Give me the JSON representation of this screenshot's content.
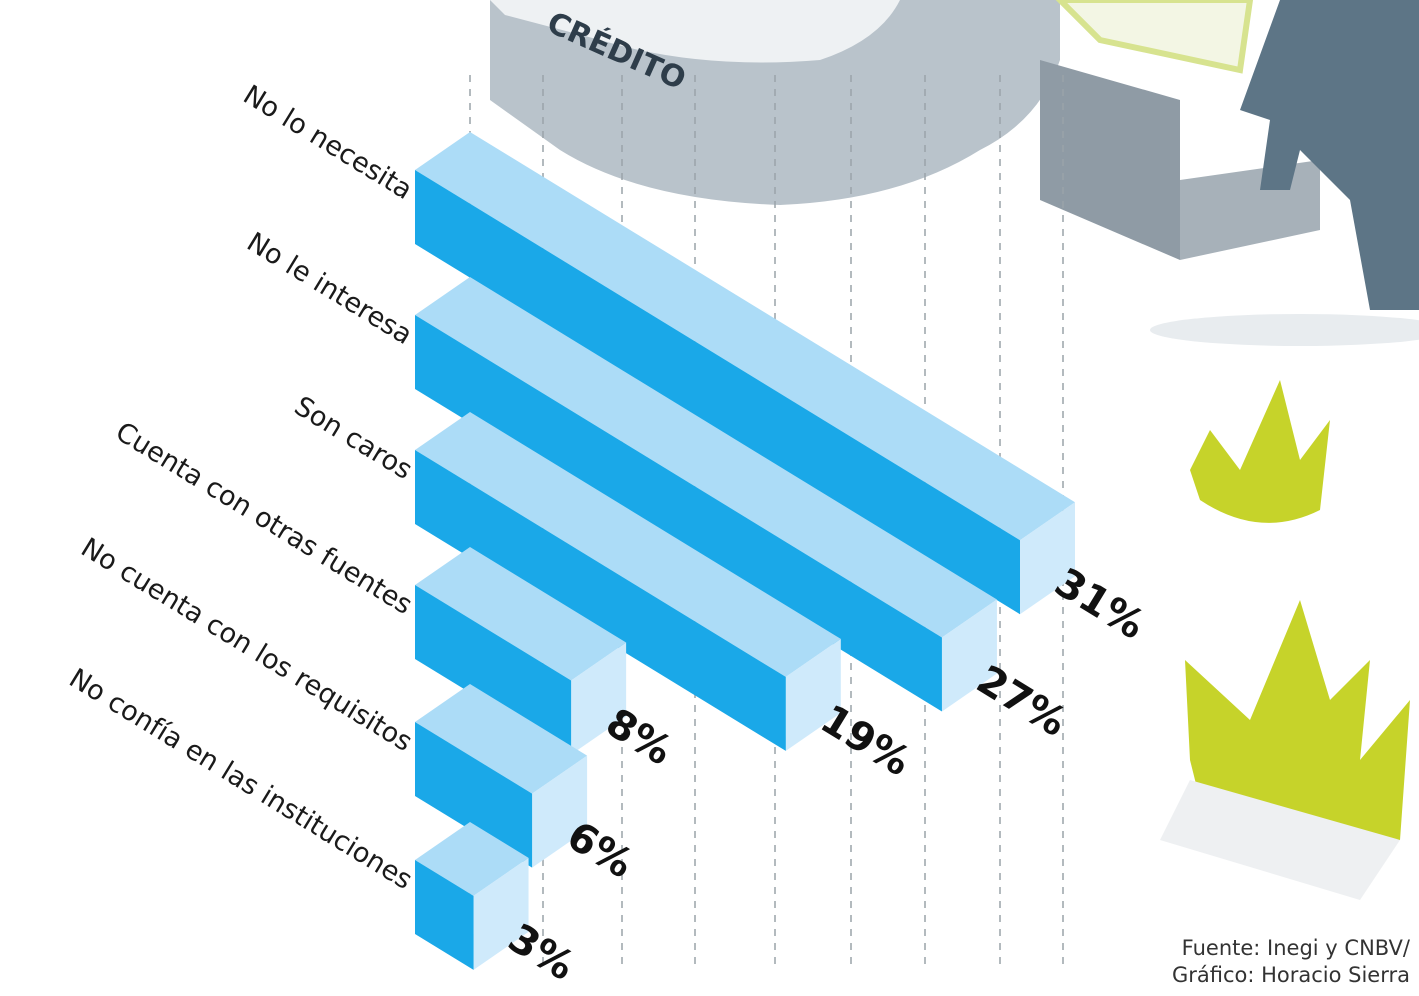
{
  "chart_data": {
    "type": "isometric-bar",
    "sign_text": "CRÉDITO",
    "categories": [
      "No lo necesita",
      "No le interesa",
      "Son caros",
      "Cuenta con otras fuentes",
      "No cuenta con los requisitos",
      "No confía en las instituciones"
    ],
    "values": [
      31,
      27,
      19,
      8,
      6,
      3
    ],
    "value_labels": [
      "31%",
      "27%",
      "19%",
      "8%",
      "6%",
      "3%"
    ],
    "colors": {
      "front": "#1aa8e8",
      "top": "#acdcf7",
      "end": "#cfeafb"
    },
    "source": [
      "Fuente: Inegi y CNBV/",
      "Gráfico: Horacio Sierra"
    ]
  }
}
